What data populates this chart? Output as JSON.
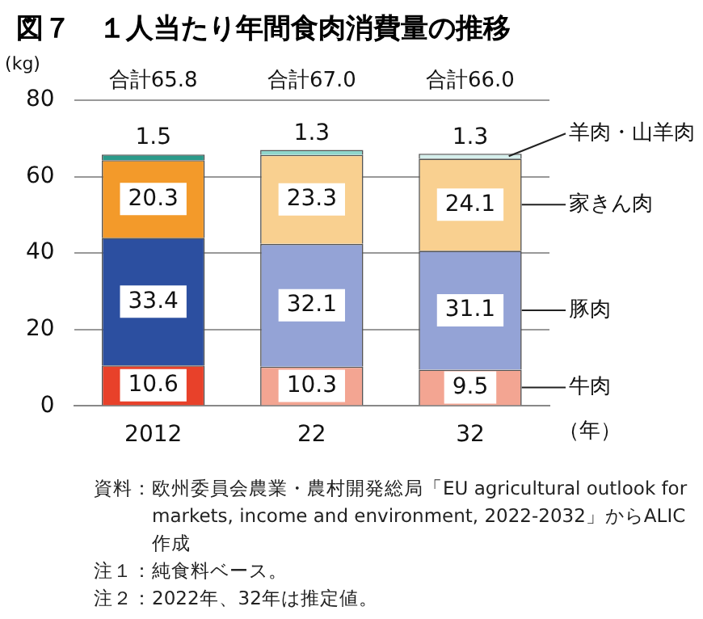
{
  "chart_data": {
    "type": "bar",
    "title": "図７　１人当たり年間食肉消費量の推移",
    "ylabel": "(kg)",
    "xlabel": "（年）",
    "categories": [
      "2012",
      "22",
      "32"
    ],
    "stacked": true,
    "ylim": [
      0,
      80
    ],
    "yticks": [
      0,
      20,
      40,
      60,
      80
    ],
    "grid": "y",
    "legend": false,
    "data_labels": true,
    "series": [
      {
        "name": "牛肉",
        "colors": [
          "#e8412a",
          "#f3a592",
          "#f3a592"
        ],
        "values": [
          10.6,
          10.3,
          9.5
        ]
      },
      {
        "name": "豚肉",
        "colors": [
          "#2c4fa0",
          "#94a3d6",
          "#94a3d6"
        ],
        "values": [
          33.4,
          32.1,
          31.1
        ]
      },
      {
        "name": "家きん肉",
        "colors": [
          "#f39a2a",
          "#f9d090",
          "#f9d090"
        ],
        "values": [
          20.3,
          23.3,
          24.1
        ]
      },
      {
        "name": "羊肉・山羊肉",
        "colors": [
          "#2a9a8a",
          "#8fd6cc",
          "#d6efec"
        ],
        "values": [
          1.5,
          1.3,
          1.3
        ]
      }
    ],
    "totals": [
      "合計65.8",
      "合計67.0",
      "合計66.0"
    ],
    "annotations": [
      "資料：欧州委員会農業・農村開発総局「EU agricultural outlook for markets, income and environment, 2022-2032」からALIC作成",
      "注１：純食料ベース。",
      "注２：2022年、32年は推定値。"
    ]
  }
}
